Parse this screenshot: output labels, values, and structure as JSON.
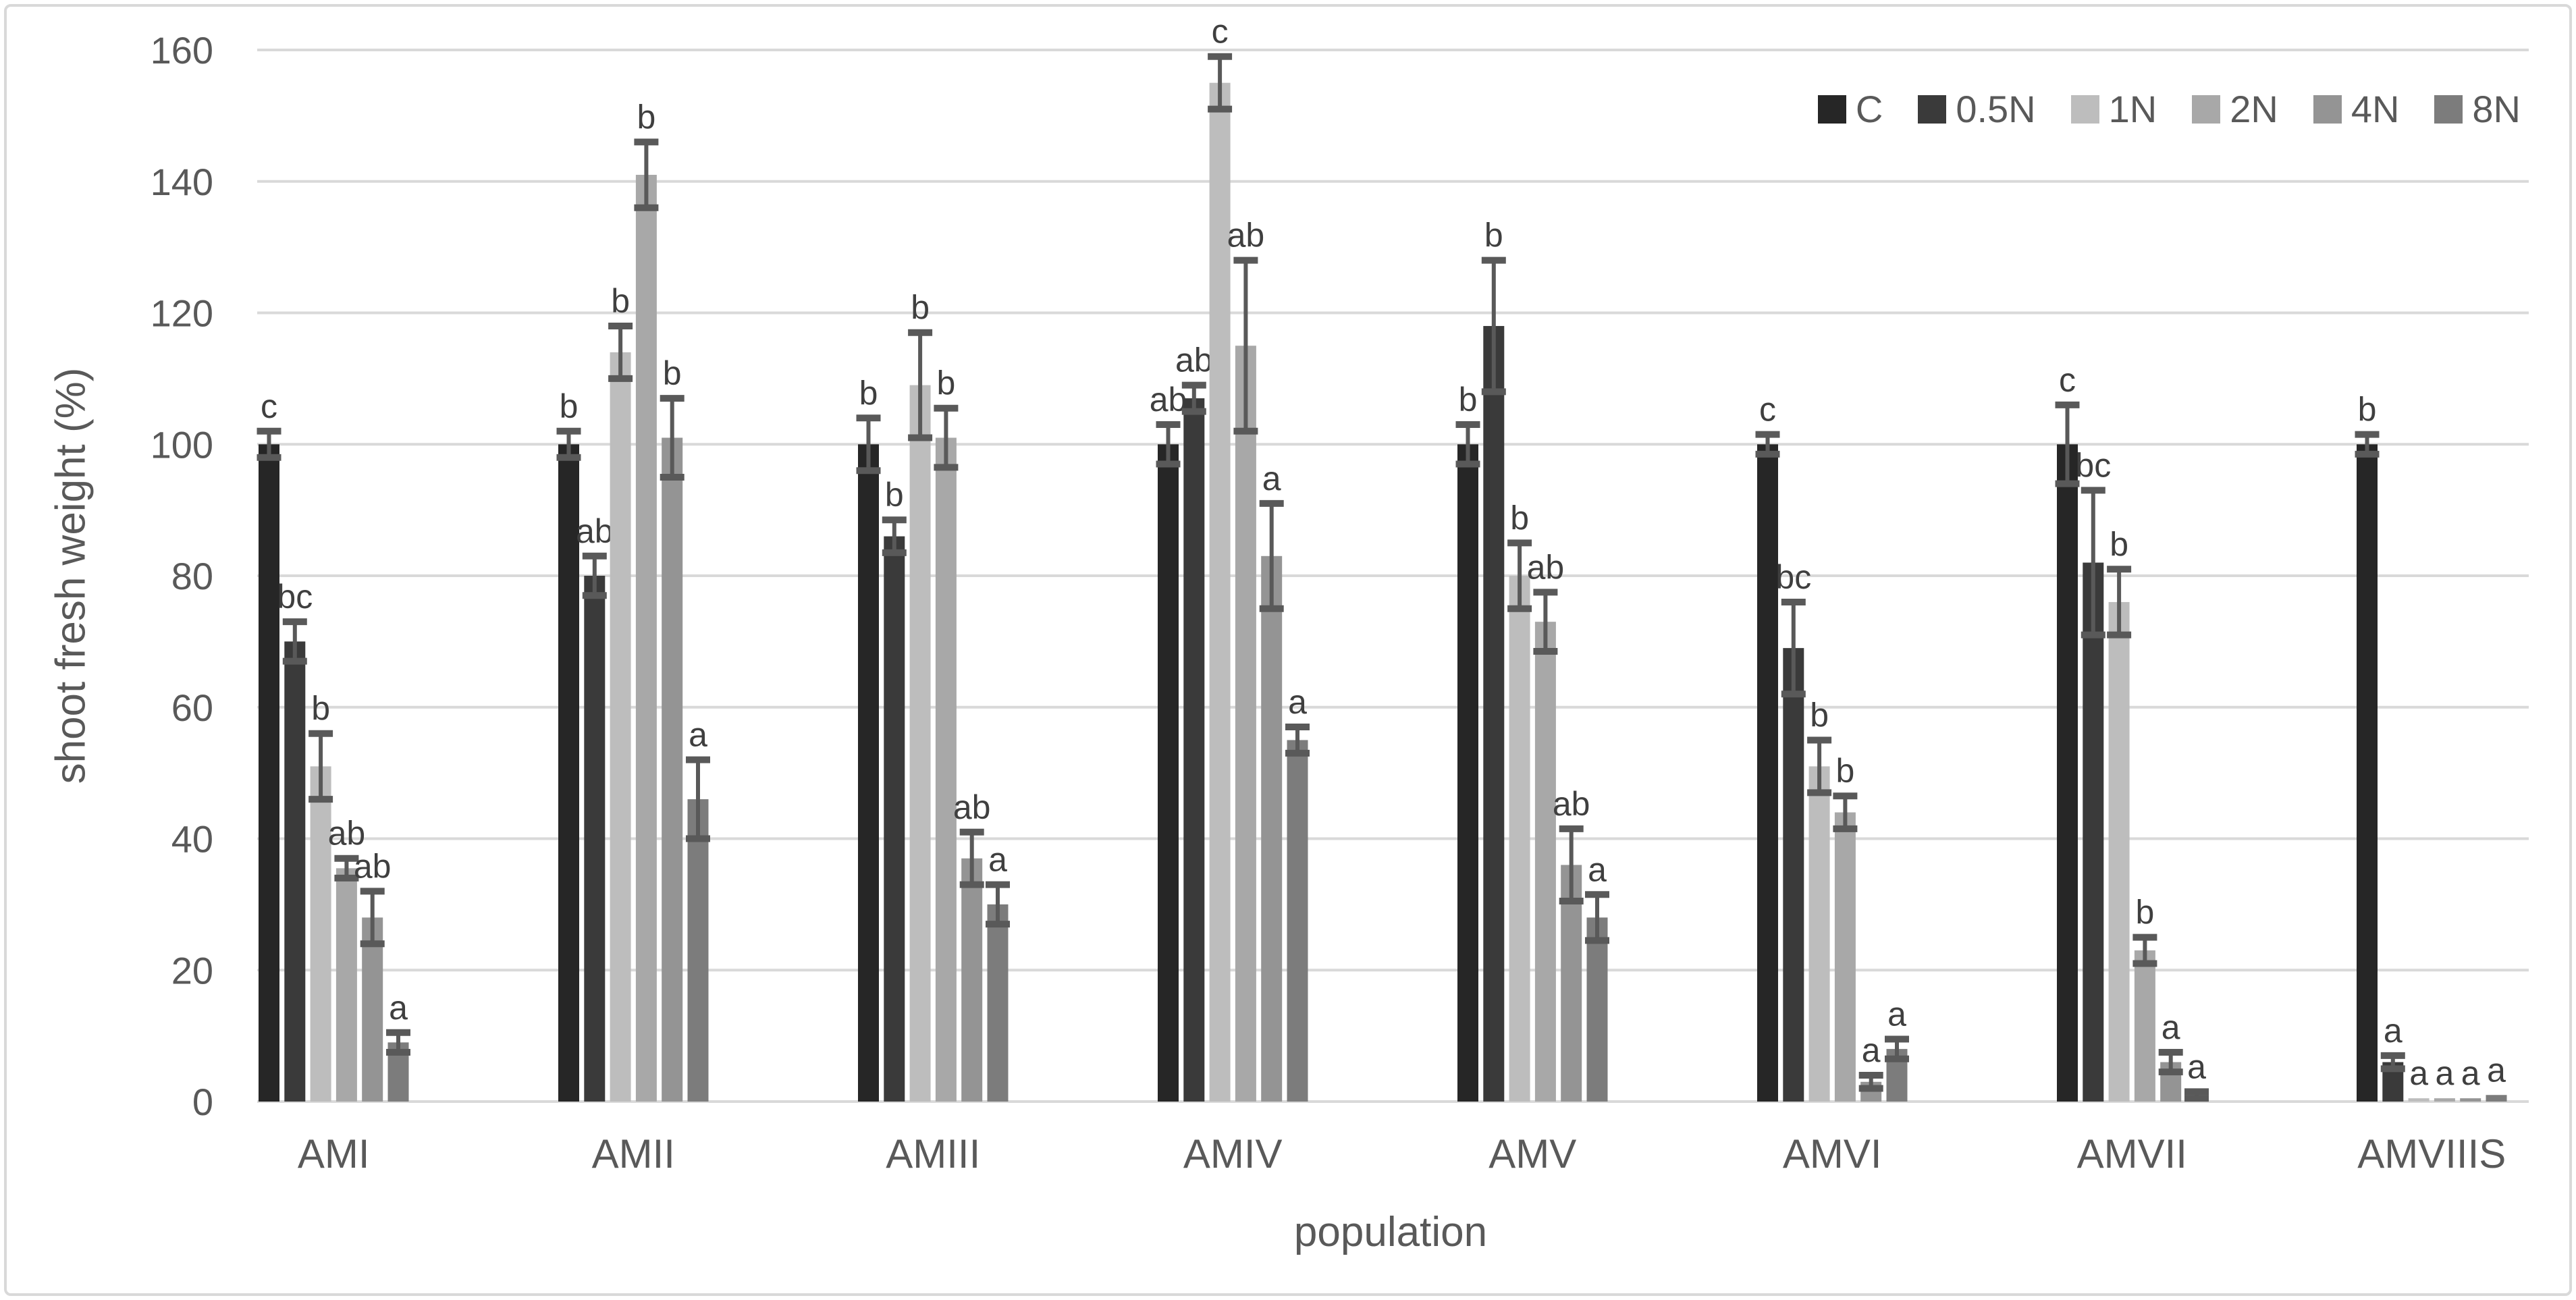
{
  "colors": {
    "background": "#ffffff",
    "border": "#d9d9d9",
    "gridline": "#d9d9d9",
    "axis_text": "#595959",
    "sig_letter": "#3f3f3f",
    "error_bar": "#595959"
  },
  "chart_data": {
    "type": "bar",
    "title": "",
    "xlabel": "population",
    "ylabel": "shoot fresh weight (%)",
    "ylim": [
      0,
      160
    ],
    "ytick_step": 20,
    "grid": true,
    "legend_position": "top-right",
    "categories": [
      "AMI",
      "AMII",
      "AMIII",
      "AMIV",
      "AMV",
      "AMVI",
      "AMVII",
      "AMVIIIS"
    ],
    "series": [
      {
        "name": "C",
        "color": "#262626",
        "values": [
          100,
          100,
          100,
          100,
          100,
          100,
          100,
          100
        ],
        "errors": [
          2,
          2,
          4,
          3,
          3,
          1.5,
          6,
          1.5
        ],
        "letters": [
          "c",
          "b",
          "b",
          "ab",
          "b",
          "c",
          "c",
          "b"
        ]
      },
      {
        "name": "0.5N",
        "color": "#3a3a3a",
        "values": [
          70,
          80,
          86,
          107,
          118,
          69,
          82,
          6
        ],
        "errors": [
          3,
          3,
          2.5,
          2,
          10,
          7,
          11,
          1
        ],
        "letters": [
          "bc",
          "ab",
          "b",
          "ab",
          "b",
          "bc",
          "bc",
          "a"
        ]
      },
      {
        "name": "1N",
        "color": "#bdbdbd",
        "values": [
          51,
          114,
          109,
          155,
          80,
          51,
          76,
          0.5
        ],
        "errors": [
          5,
          4,
          8,
          4,
          5,
          4,
          5,
          0
        ],
        "letters": [
          "b",
          "b",
          "b",
          "c",
          "b",
          "b",
          "b",
          "a"
        ]
      },
      {
        "name": "2N",
        "color": "#a8a8a8",
        "values": [
          35.5,
          141,
          101,
          115,
          73,
          44,
          23,
          0.5
        ],
        "errors": [
          1.5,
          5,
          4.5,
          13,
          4.5,
          2.5,
          2,
          0
        ],
        "letters": [
          "ab",
          "b",
          "b",
          "ab",
          "ab",
          "b",
          "b",
          "a"
        ]
      },
      {
        "name": "4N",
        "color": "#949494",
        "values": [
          28,
          101,
          37,
          83,
          36,
          3,
          6,
          0.5
        ],
        "errors": [
          4,
          6,
          4,
          8,
          5.5,
          1,
          1.5,
          0
        ],
        "letters": [
          "ab",
          "b",
          "ab",
          "a",
          "ab",
          "a",
          "a",
          "a"
        ]
      },
      {
        "name": "8N",
        "color": "#7c7c7c",
        "values": [
          9,
          46,
          30,
          55,
          28,
          8,
          1,
          1
        ],
        "errors": [
          1.5,
          6,
          3,
          2,
          3.5,
          1.5,
          0.5,
          0
        ],
        "letters": [
          "a",
          "a",
          "a",
          "a",
          "a",
          "a",
          "a",
          "a"
        ]
      }
    ]
  }
}
